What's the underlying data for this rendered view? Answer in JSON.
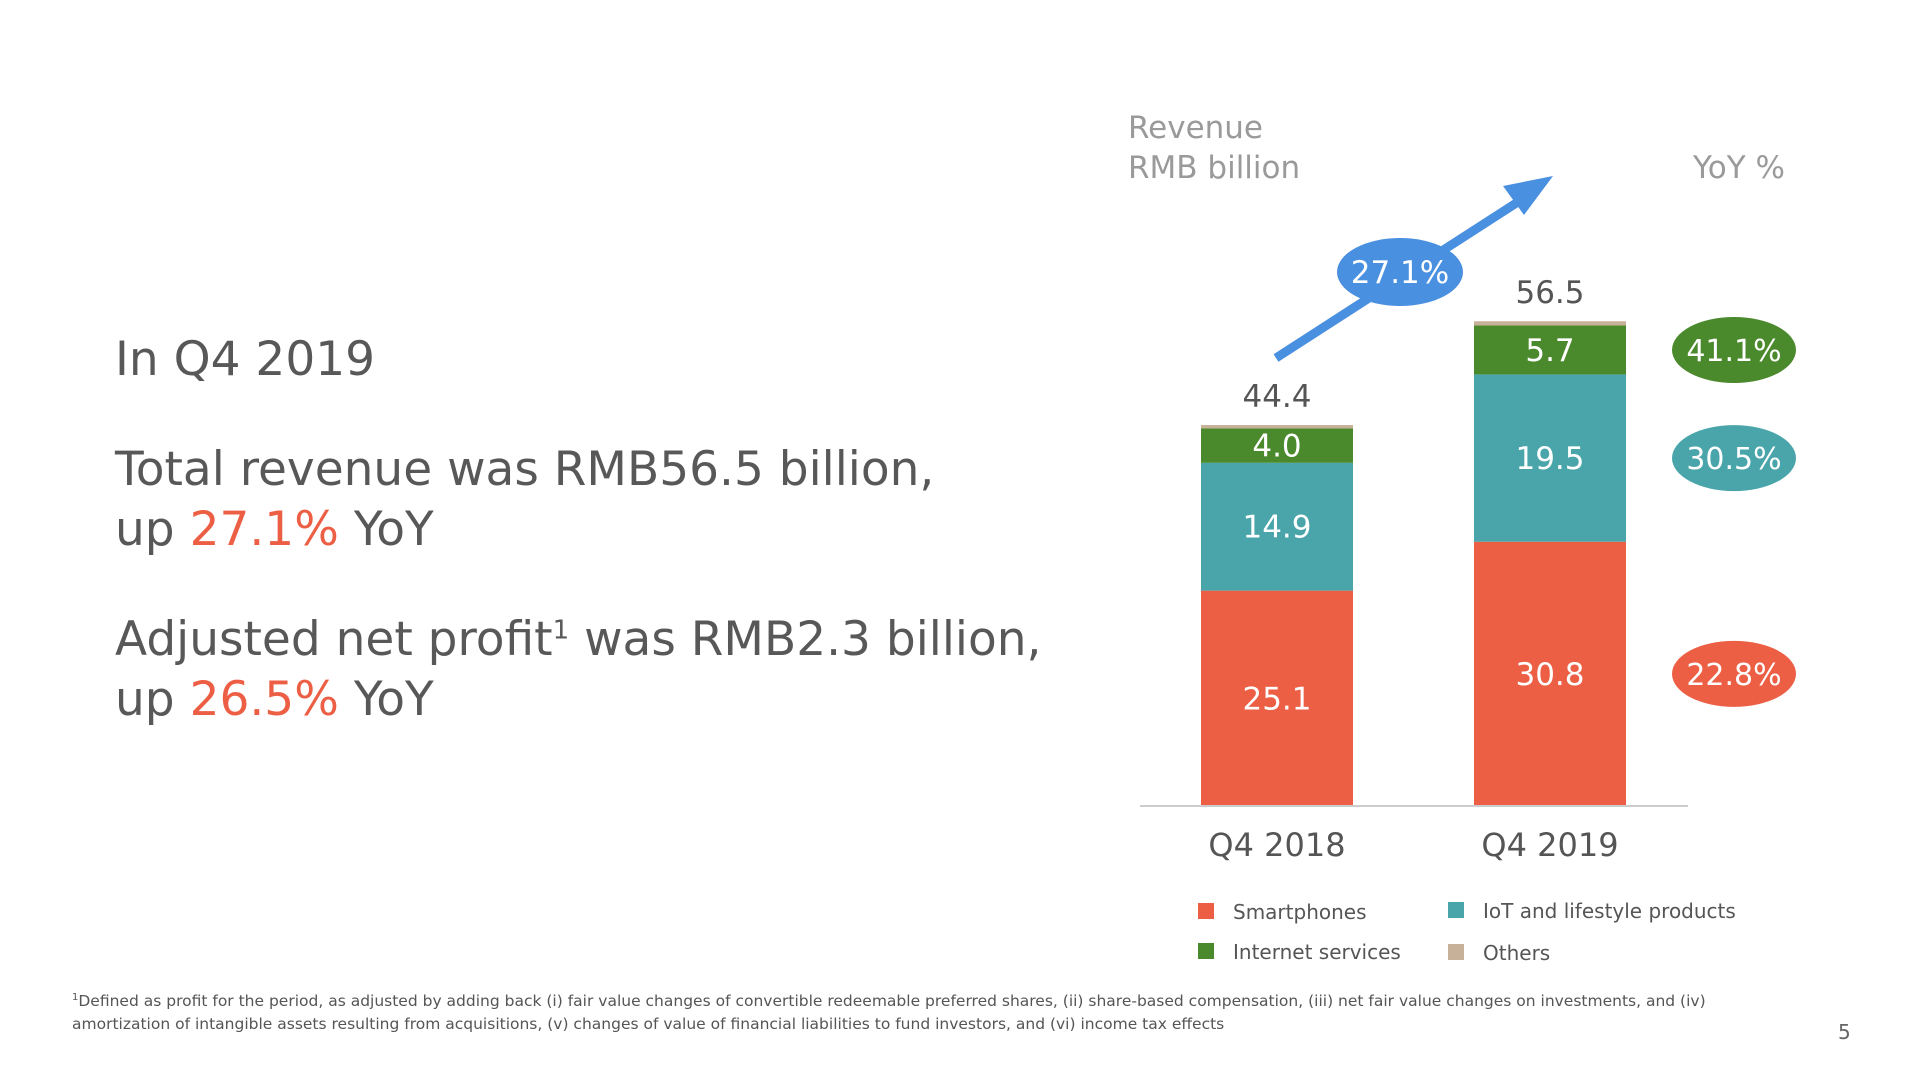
{
  "summary": {
    "heading": "In Q4 2019",
    "revenue_line1": "Total revenue was RMB56.5 billion,",
    "revenue_up": "up ",
    "revenue_growth": "27.1%",
    "yoy": " YoY",
    "profit_prefix": "Adjusted net profit",
    "profit_sup": "1",
    "profit_suffix": " was RMB2.3 billion,",
    "profit_up": "up ",
    "profit_growth": "26.5%"
  },
  "chart_data": {
    "type": "bar",
    "stacked": true,
    "ylabel_line1": "Revenue",
    "ylabel_line2": "RMB billion",
    "yoy_label": "YoY %",
    "categories": [
      "Q4 2018",
      "Q4 2019"
    ],
    "totals": [
      "44.4",
      "56.5"
    ],
    "total_growth": "27.1%",
    "series": [
      {
        "name": "Smartphones",
        "values": [
          25.1,
          30.8
        ],
        "color": "#ec5f45",
        "yoy": "22.8%"
      },
      {
        "name": "IoT and lifestyle products",
        "values": [
          14.9,
          19.5
        ],
        "color": "#4aa5aa",
        "yoy": "30.5%"
      },
      {
        "name": "Internet services",
        "values": [
          4.0,
          5.7
        ],
        "color": "#4a8a2c",
        "yoy": "41.1%"
      },
      {
        "name": "Others",
        "values": [
          0.4,
          0.5
        ],
        "color": "#c7b299",
        "yoy": ""
      }
    ]
  },
  "colors": {
    "arrow": "#4a90e0",
    "highlight": "#ec5f45"
  },
  "footnote": {
    "sup": "1",
    "text": "Defined as profit for the period, as adjusted by adding back (i) fair value changes of convertible redeemable preferred shares, (ii) share-based compensation, (iii) net fair value changes on investments, and (iv) amortization of intangible assets resulting from acquisitions, (v) changes of value of financial liabilities to fund investors, and (vi) income tax effects"
  },
  "page_number": "5"
}
